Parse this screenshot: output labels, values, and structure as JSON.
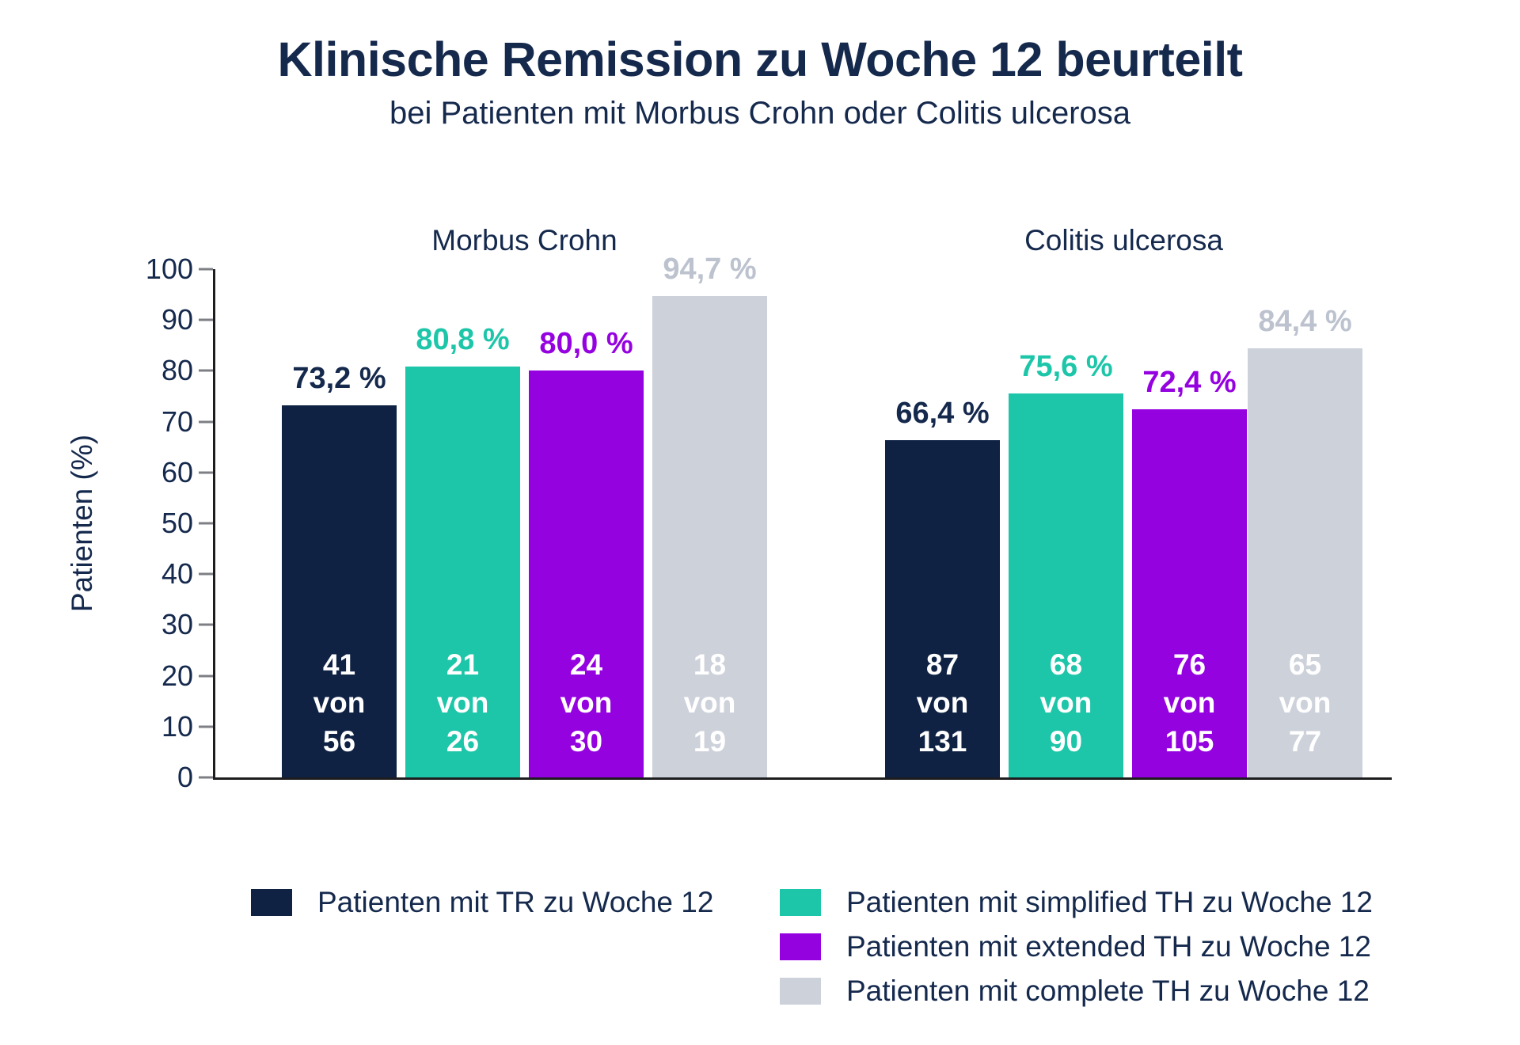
{
  "header": {
    "title": "Klinische Remission zu Woche 12 beurteilt",
    "subtitle": "bei Patienten mit Morbus Crohn oder Colitis ulcerosa"
  },
  "colors": {
    "bars": {
      "navy": "#0F2244",
      "teal": "#1EC6A9",
      "purple": "#9502E0",
      "gray": "#CDD1DA"
    },
    "labels": {
      "navy": "#15294D",
      "teal": "#1EC6A9",
      "purple": "#9502E0",
      "gray": "#BCC2CE"
    },
    "axis_line": "#1d1d1f",
    "tick_mark": "#7d7f84",
    "text": "#15294D"
  },
  "chart": {
    "group1": {
      "title": "Morbus Crohn",
      "bars": [
        {
          "series": "TR",
          "color_key": "navy",
          "value": 73.2,
          "pct_label": "73,2 %",
          "num": "41",
          "von": "von",
          "den": "56"
        },
        {
          "series": "simplified TH",
          "color_key": "teal",
          "value": 80.8,
          "pct_label": "80,8 %",
          "num": "21",
          "von": "von",
          "den": "26"
        },
        {
          "series": "extended TH",
          "color_key": "purple",
          "value": 80.0,
          "pct_label": "80,0 %",
          "num": "24",
          "von": "von",
          "den": "30"
        },
        {
          "series": "complete TH",
          "color_key": "gray",
          "value": 94.7,
          "pct_label": "94,7 %",
          "num": "18",
          "von": "von",
          "den": "19"
        }
      ]
    },
    "group2": {
      "title": "Colitis ulcerosa",
      "bars": [
        {
          "series": "TR",
          "color_key": "navy",
          "value": 66.4,
          "pct_label": "66,4 %",
          "num": "87",
          "von": "von",
          "den": "131"
        },
        {
          "series": "simplified TH",
          "color_key": "teal",
          "value": 75.6,
          "pct_label": "75,6 %",
          "num": "68",
          "von": "von",
          "den": "90"
        },
        {
          "series": "extended TH",
          "color_key": "purple",
          "value": 72.4,
          "pct_label": "72,4 %",
          "num": "76",
          "von": "von",
          "den": "105"
        },
        {
          "series": "complete TH",
          "color_key": "gray",
          "value": 84.4,
          "pct_label": "84,4 %",
          "num": "65",
          "von": "von",
          "den": "77"
        }
      ]
    }
  },
  "chart_data": {
    "type": "bar",
    "title": "Klinische Remission zu Woche 12 beurteilt",
    "subtitle": "bei Patienten mit Morbus Crohn oder Colitis ulcerosa",
    "xlabel": "",
    "ylabel": "Patienten (%)",
    "ylim": [
      0,
      100
    ],
    "yticks": [
      0,
      10,
      20,
      30,
      40,
      50,
      60,
      70,
      80,
      90,
      100
    ],
    "grid": false,
    "legend_position": "bottom",
    "categories": [
      "Morbus Crohn",
      "Colitis ulcerosa"
    ],
    "series": [
      {
        "name": "Patienten mit TR zu Woche 12",
        "color": "#0F2244",
        "values": [
          73.2,
          66.4
        ],
        "value_labels": [
          "73,2 %",
          "66,4 %"
        ],
        "counts": [
          "41 von 56",
          "87 von 131"
        ]
      },
      {
        "name": "Patienten mit simplified TH zu Woche 12",
        "color": "#1EC6A9",
        "values": [
          80.8,
          75.6
        ],
        "value_labels": [
          "80,8 %",
          "75,6 %"
        ],
        "counts": [
          "21 von 26",
          "68 von 90"
        ]
      },
      {
        "name": "Patienten mit extended TH zu Woche 12",
        "color": "#9502E0",
        "values": [
          80.0,
          72.4
        ],
        "value_labels": [
          "80,0 %",
          "72,4 %"
        ],
        "counts": [
          "24 von 30",
          "76 von 105"
        ]
      },
      {
        "name": "Patienten mit complete TH zu Woche 12",
        "color": "#CDD1DA",
        "values": [
          94.7,
          84.4
        ],
        "value_labels": [
          "94,7 %",
          "84,4 %"
        ],
        "counts": [
          "18 von 19",
          "65 von 77"
        ]
      }
    ]
  },
  "legend": {
    "items": [
      {
        "label": "Patienten mit TR zu Woche 12",
        "color_key": "navy"
      },
      {
        "label": "Patienten mit simplified TH zu Woche 12",
        "color_key": "teal"
      },
      {
        "label": "Patienten mit extended TH zu Woche 12",
        "color_key": "purple"
      },
      {
        "label": "Patienten mit complete TH zu Woche 12",
        "color_key": "gray"
      }
    ]
  }
}
